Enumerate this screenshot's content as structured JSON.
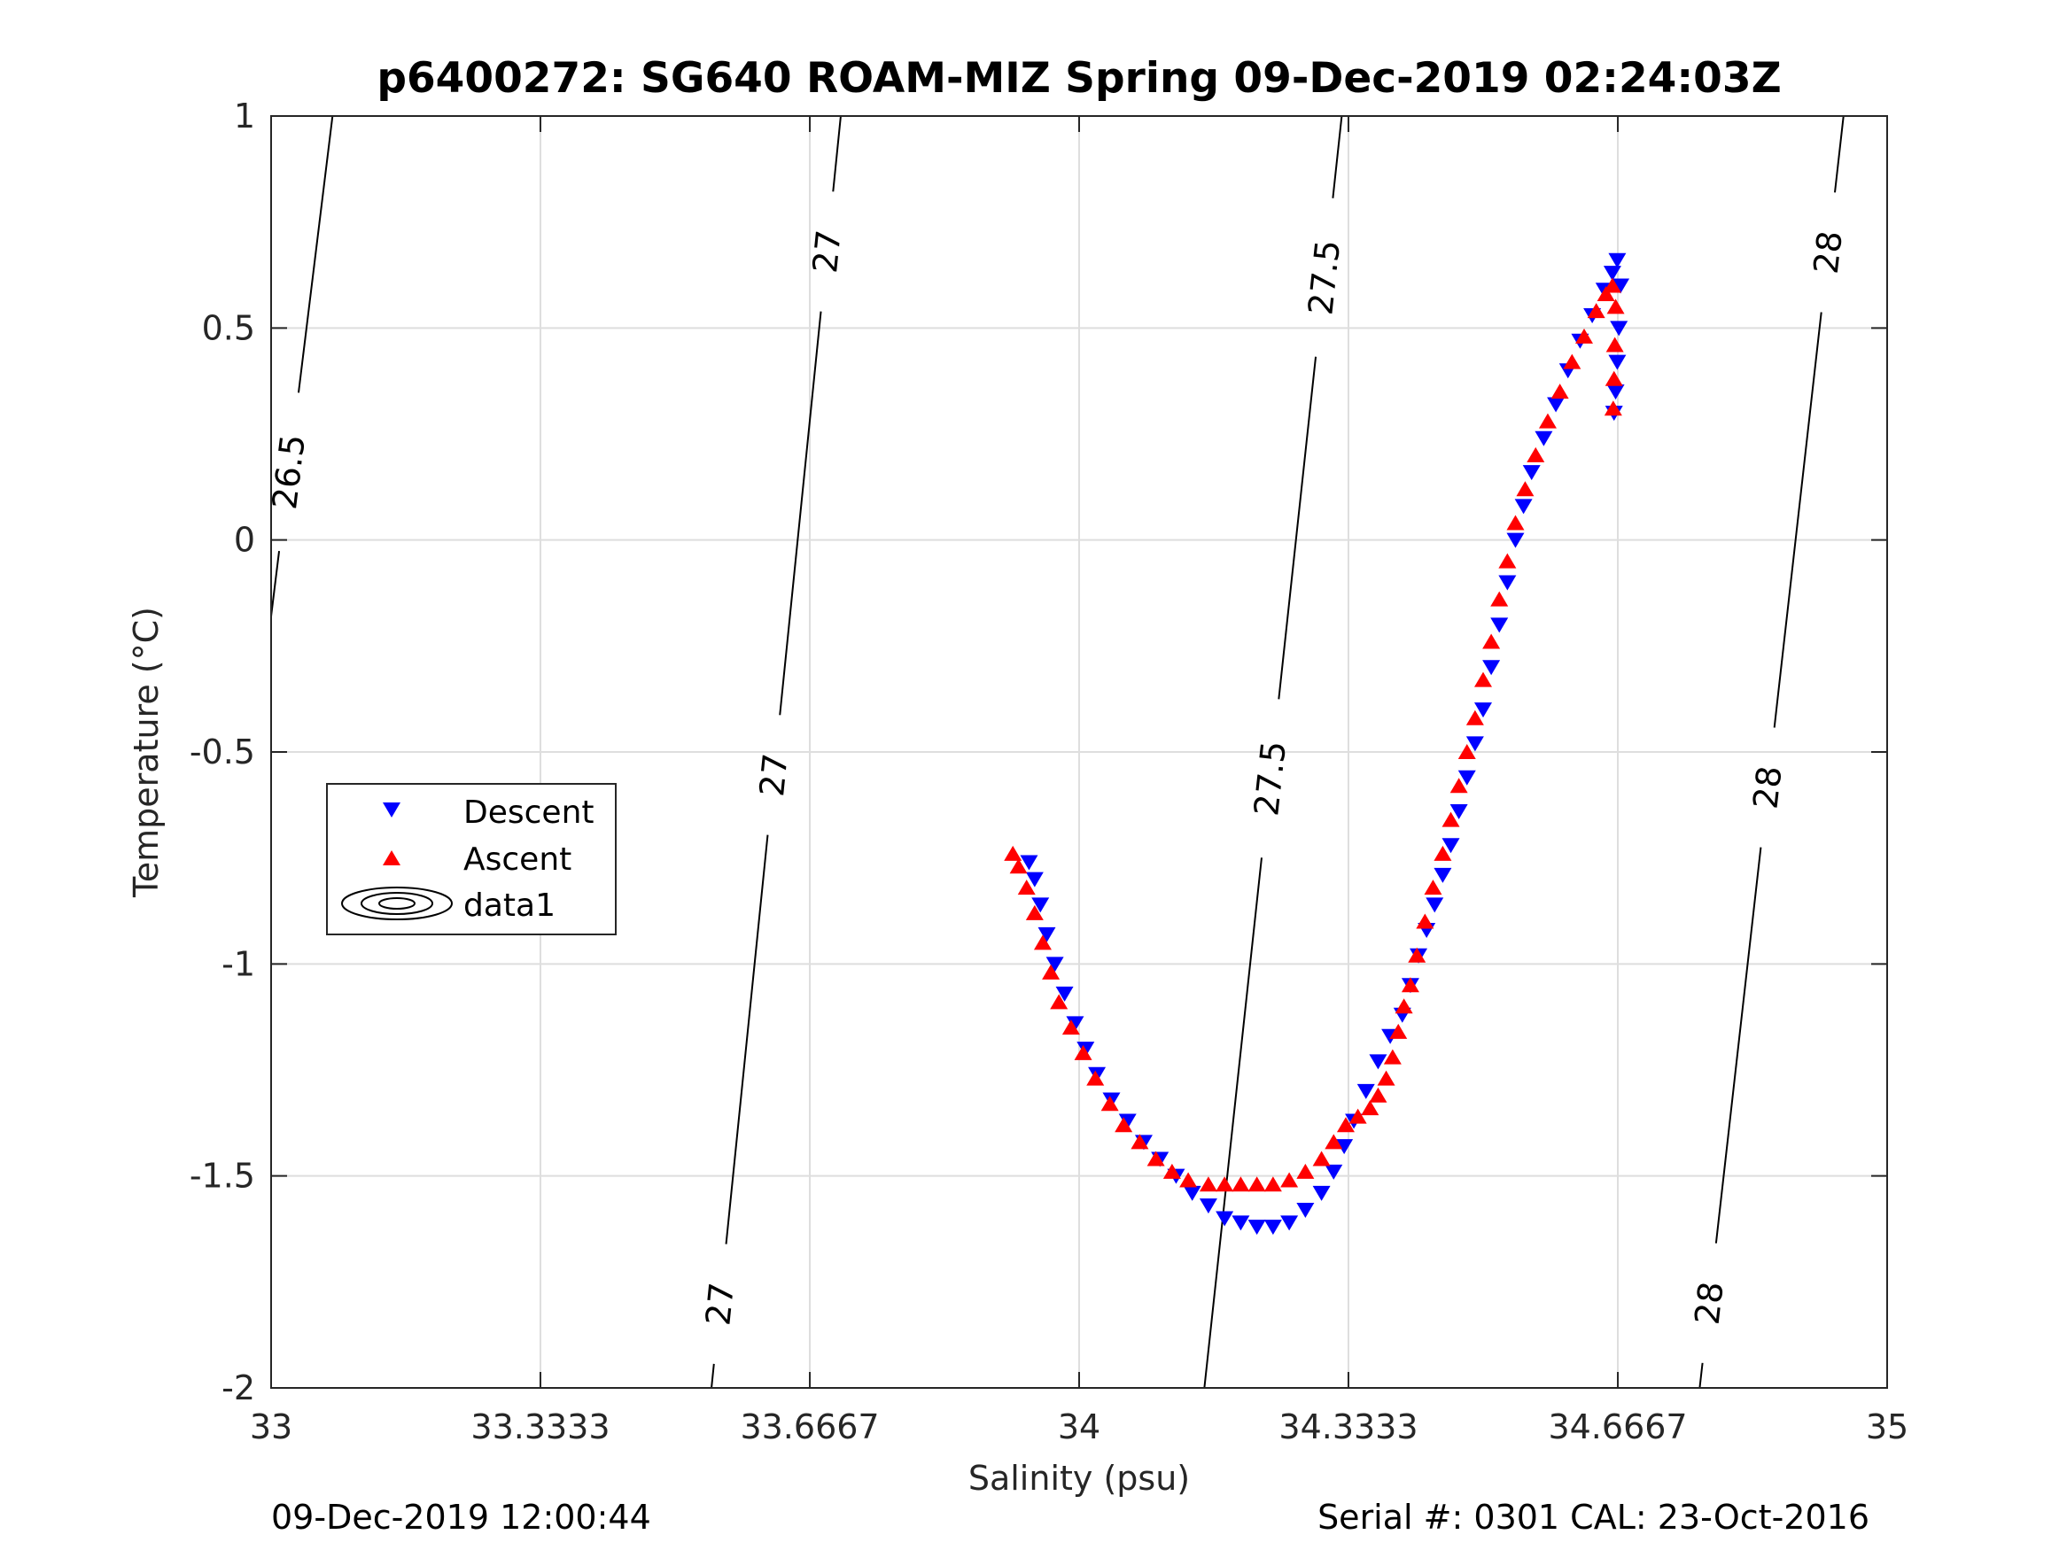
{
  "chart_data": {
    "type": "scatter",
    "title": "p6400272: SG640 ROAM-MIZ Spring 09-Dec-2019 02:24:03Z",
    "xlabel": "Salinity (psu)",
    "ylabel": "Temperature (°C)",
    "xlim": [
      33,
      35
    ],
    "ylim": [
      -2,
      1
    ],
    "xticks": [
      33,
      33.3333,
      33.6667,
      34,
      34.3333,
      34.6667,
      35
    ],
    "xtick_labels": [
      "33",
      "33.3333",
      "33.6667",
      "34",
      "34.3333",
      "34.6667",
      "35"
    ],
    "yticks": [
      -2,
      -1.5,
      -1,
      -0.5,
      0,
      0.5,
      1
    ],
    "ytick_labels": [
      "-2",
      "-1.5",
      "-1",
      "-0.5",
      "0",
      "0.5",
      "1"
    ],
    "grid": true,
    "legend_position": "left-middle",
    "series": [
      {
        "name": "Descent",
        "marker": "triangle-down",
        "color": "#0000ff",
        "points": [
          [
            33.938,
            -0.76
          ],
          [
            33.945,
            -0.8
          ],
          [
            33.952,
            -0.86
          ],
          [
            33.96,
            -0.93
          ],
          [
            33.97,
            -1.0
          ],
          [
            33.982,
            -1.07
          ],
          [
            33.995,
            -1.14
          ],
          [
            34.008,
            -1.2
          ],
          [
            34.022,
            -1.26
          ],
          [
            34.04,
            -1.32
          ],
          [
            34.06,
            -1.37
          ],
          [
            34.08,
            -1.42
          ],
          [
            34.1,
            -1.46
          ],
          [
            34.12,
            -1.5
          ],
          [
            34.14,
            -1.54
          ],
          [
            34.16,
            -1.57
          ],
          [
            34.18,
            -1.6
          ],
          [
            34.2,
            -1.61
          ],
          [
            34.22,
            -1.62
          ],
          [
            34.24,
            -1.62
          ],
          [
            34.26,
            -1.61
          ],
          [
            34.28,
            -1.58
          ],
          [
            34.3,
            -1.54
          ],
          [
            34.315,
            -1.49
          ],
          [
            34.328,
            -1.43
          ],
          [
            34.34,
            -1.37
          ],
          [
            34.355,
            -1.3
          ],
          [
            34.37,
            -1.23
          ],
          [
            34.385,
            -1.17
          ],
          [
            34.4,
            -1.12
          ],
          [
            34.41,
            -1.05
          ],
          [
            34.42,
            -0.98
          ],
          [
            34.43,
            -0.92
          ],
          [
            34.44,
            -0.86
          ],
          [
            34.45,
            -0.79
          ],
          [
            34.46,
            -0.72
          ],
          [
            34.47,
            -0.64
          ],
          [
            34.48,
            -0.56
          ],
          [
            34.49,
            -0.48
          ],
          [
            34.5,
            -0.4
          ],
          [
            34.51,
            -0.3
          ],
          [
            34.52,
            -0.2
          ],
          [
            34.53,
            -0.1
          ],
          [
            34.54,
            0.0
          ],
          [
            34.55,
            0.08
          ],
          [
            34.56,
            0.16
          ],
          [
            34.575,
            0.24
          ],
          [
            34.59,
            0.32
          ],
          [
            34.605,
            0.4
          ],
          [
            34.62,
            0.47
          ],
          [
            34.635,
            0.53
          ],
          [
            34.65,
            0.59
          ],
          [
            34.66,
            0.63
          ],
          [
            34.666,
            0.66
          ],
          [
            34.67,
            0.6
          ],
          [
            34.668,
            0.5
          ],
          [
            34.666,
            0.42
          ],
          [
            34.664,
            0.35
          ],
          [
            34.662,
            0.3
          ]
        ]
      },
      {
        "name": "Ascent",
        "marker": "triangle-up",
        "color": "#ff0000",
        "points": [
          [
            33.918,
            -0.74
          ],
          [
            33.925,
            -0.77
          ],
          [
            33.935,
            -0.82
          ],
          [
            33.945,
            -0.88
          ],
          [
            33.955,
            -0.95
          ],
          [
            33.965,
            -1.02
          ],
          [
            33.975,
            -1.09
          ],
          [
            33.99,
            -1.15
          ],
          [
            34.005,
            -1.21
          ],
          [
            34.02,
            -1.27
          ],
          [
            34.038,
            -1.33
          ],
          [
            34.055,
            -1.38
          ],
          [
            34.075,
            -1.42
          ],
          [
            34.095,
            -1.46
          ],
          [
            34.115,
            -1.49
          ],
          [
            34.135,
            -1.51
          ],
          [
            34.16,
            -1.52
          ],
          [
            34.18,
            -1.52
          ],
          [
            34.2,
            -1.52
          ],
          [
            34.22,
            -1.52
          ],
          [
            34.24,
            -1.52
          ],
          [
            34.26,
            -1.51
          ],
          [
            34.28,
            -1.49
          ],
          [
            34.3,
            -1.46
          ],
          [
            34.315,
            -1.42
          ],
          [
            34.33,
            -1.38
          ],
          [
            34.345,
            -1.36
          ],
          [
            34.36,
            -1.34
          ],
          [
            34.37,
            -1.31
          ],
          [
            34.38,
            -1.27
          ],
          [
            34.388,
            -1.22
          ],
          [
            34.395,
            -1.16
          ],
          [
            34.402,
            -1.1
          ],
          [
            34.41,
            -1.05
          ],
          [
            34.418,
            -0.98
          ],
          [
            34.428,
            -0.9
          ],
          [
            34.438,
            -0.82
          ],
          [
            34.45,
            -0.74
          ],
          [
            34.46,
            -0.66
          ],
          [
            34.47,
            -0.58
          ],
          [
            34.48,
            -0.5
          ],
          [
            34.49,
            -0.42
          ],
          [
            34.5,
            -0.33
          ],
          [
            34.51,
            -0.24
          ],
          [
            34.52,
            -0.14
          ],
          [
            34.53,
            -0.05
          ],
          [
            34.54,
            0.04
          ],
          [
            34.552,
            0.12
          ],
          [
            34.565,
            0.2
          ],
          [
            34.58,
            0.28
          ],
          [
            34.595,
            0.35
          ],
          [
            34.61,
            0.42
          ],
          [
            34.625,
            0.48
          ],
          [
            34.64,
            0.54
          ],
          [
            34.652,
            0.58
          ],
          [
            34.66,
            0.6
          ],
          [
            34.664,
            0.55
          ],
          [
            34.663,
            0.46
          ],
          [
            34.662,
            0.38
          ],
          [
            34.661,
            0.31
          ]
        ]
      }
    ],
    "contours": [
      {
        "label": "26.5",
        "color": "#000000",
        "line": [
          [
            33.0,
            -0.18
          ],
          [
            33.076,
            1.0
          ]
        ],
        "label_positions": [
          [
            33.025,
            0.16
          ]
        ]
      },
      {
        "label": "27",
        "color": "#000000",
        "line": [
          [
            33.545,
            -2.0
          ],
          [
            33.705,
            1.0
          ]
        ],
        "label_positions": [
          [
            33.69,
            0.68
          ],
          [
            33.6,
            -0.55
          ],
          [
            33.545,
            -1.8
          ]
        ]
      },
      {
        "label": "27.5",
        "color": "#000000",
        "line": [
          [
            34.155,
            -2.0
          ],
          [
            34.325,
            1.0
          ]
        ],
        "label_positions": [
          [
            34.3,
            0.62
          ],
          [
            34.225,
            -0.56
          ]
        ]
      },
      {
        "label": "28",
        "color": "#000000",
        "line": [
          [
            34.768,
            -2.0
          ],
          [
            34.946,
            1.0
          ]
        ],
        "label_positions": [
          [
            34.92,
            0.68
          ],
          [
            34.835,
            -0.58
          ],
          [
            34.78,
            -1.8
          ]
        ]
      }
    ],
    "legend": {
      "entries": [
        {
          "label": "Descent",
          "marker": "triangle-down",
          "color": "#0000ff"
        },
        {
          "label": "Ascent",
          "marker": "triangle-up",
          "color": "#ff0000"
        },
        {
          "label": "data1",
          "marker": "contour",
          "color": "#000000"
        }
      ]
    }
  },
  "footer": {
    "left": "09-Dec-2019 12:00:44",
    "right": "Serial #: 0301  CAL: 23-Oct-2016"
  }
}
